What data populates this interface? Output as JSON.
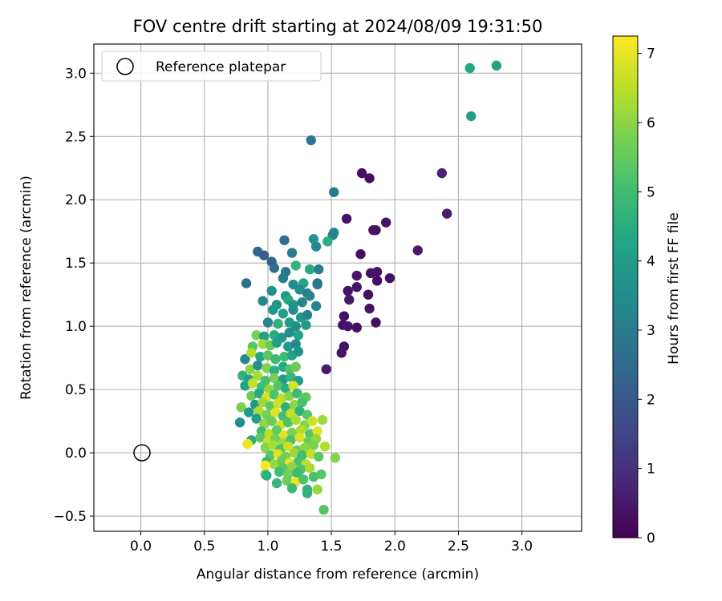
{
  "chart_data": {
    "type": "scatter",
    "title": "FOV centre drift starting at 2024/08/09 19:31:50",
    "xlabel": "Angular distance from reference (arcmin)",
    "ylabel": "Rotation from reference (arcmin)",
    "xlim": [
      -0.37,
      3.47
    ],
    "ylim": [
      -0.62,
      3.23
    ],
    "xticks": [
      0.0,
      0.5,
      1.0,
      1.5,
      2.0,
      2.5,
      3.0
    ],
    "yticks": [
      -0.5,
      0.0,
      0.5,
      1.0,
      1.5,
      2.0,
      2.5,
      3.0
    ],
    "xtick_labels": [
      "0.0",
      "0.5",
      "1.0",
      "1.5",
      "2.0",
      "2.5",
      "3.0"
    ],
    "ytick_labels": [
      "−0.5",
      "0.0",
      "0.5",
      "1.0",
      "1.5",
      "2.0",
      "2.5",
      "3.0"
    ],
    "grid": true,
    "legend": {
      "placement": "top-left",
      "entries": [
        {
          "label": "Reference platepar",
          "marker": "open-circle"
        }
      ]
    },
    "reference_point": {
      "x": 0.0,
      "y": 0.0,
      "label": "Reference platepar"
    },
    "colorbar": {
      "label": "Hours from first FF file",
      "colormap": "viridis",
      "range": [
        0,
        7.25
      ],
      "ticks": [
        0,
        1,
        2,
        3,
        4,
        5,
        6,
        7
      ],
      "tick_labels": [
        "0",
        "1",
        "2",
        "3",
        "4",
        "5",
        "6",
        "7"
      ]
    },
    "points": [
      {
        "x": 1.74,
        "y": 2.21,
        "c": 0.3
      },
      {
        "x": 1.8,
        "y": 2.17,
        "c": 0.3
      },
      {
        "x": 1.62,
        "y": 1.85,
        "c": 0.4
      },
      {
        "x": 1.83,
        "y": 1.76,
        "c": 0.4
      },
      {
        "x": 1.85,
        "y": 1.76,
        "c": 0.3
      },
      {
        "x": 1.93,
        "y": 1.82,
        "c": 0.4
      },
      {
        "x": 1.73,
        "y": 1.57,
        "c": 0.3
      },
      {
        "x": 2.18,
        "y": 1.6,
        "c": 0.5
      },
      {
        "x": 1.81,
        "y": 1.42,
        "c": 0.3
      },
      {
        "x": 1.86,
        "y": 1.43,
        "c": 0.4
      },
      {
        "x": 1.7,
        "y": 1.4,
        "c": 0.4
      },
      {
        "x": 1.86,
        "y": 1.36,
        "c": 0.3
      },
      {
        "x": 1.96,
        "y": 1.38,
        "c": 0.3
      },
      {
        "x": 1.7,
        "y": 1.31,
        "c": 0.4
      },
      {
        "x": 1.63,
        "y": 1.28,
        "c": 0.4
      },
      {
        "x": 1.79,
        "y": 1.25,
        "c": 0.3
      },
      {
        "x": 1.64,
        "y": 1.21,
        "c": 0.5
      },
      {
        "x": 1.8,
        "y": 1.14,
        "c": 0.4
      },
      {
        "x": 1.6,
        "y": 1.08,
        "c": 0.3
      },
      {
        "x": 1.59,
        "y": 1.01,
        "c": 0.3
      },
      {
        "x": 1.63,
        "y": 1.0,
        "c": 0.4
      },
      {
        "x": 1.7,
        "y": 0.99,
        "c": 0.3
      },
      {
        "x": 1.85,
        "y": 1.03,
        "c": 0.3
      },
      {
        "x": 1.6,
        "y": 0.84,
        "c": 0.4
      },
      {
        "x": 1.58,
        "y": 0.79,
        "c": 0.4
      },
      {
        "x": 1.46,
        "y": 0.66,
        "c": 0.6
      },
      {
        "x": 2.37,
        "y": 2.21,
        "c": 0.7
      },
      {
        "x": 2.41,
        "y": 1.89,
        "c": 0.6
      },
      {
        "x": 2.59,
        "y": 3.04,
        "c": 4.3
      },
      {
        "x": 2.8,
        "y": 3.06,
        "c": 4.2
      },
      {
        "x": 2.6,
        "y": 2.66,
        "c": 4.1
      },
      {
        "x": 1.34,
        "y": 2.47,
        "c": 2.8
      },
      {
        "x": 1.52,
        "y": 2.06,
        "c": 2.9
      },
      {
        "x": 1.52,
        "y": 1.74,
        "c": 3.6
      },
      {
        "x": 1.51,
        "y": 1.72,
        "c": 3.2
      },
      {
        "x": 1.47,
        "y": 1.67,
        "c": 4.6
      },
      {
        "x": 1.36,
        "y": 1.69,
        "c": 3.7
      },
      {
        "x": 1.38,
        "y": 1.63,
        "c": 3.3
      },
      {
        "x": 0.92,
        "y": 1.59,
        "c": 2.4
      },
      {
        "x": 0.97,
        "y": 1.56,
        "c": 2.2
      },
      {
        "x": 1.13,
        "y": 1.68,
        "c": 2.6
      },
      {
        "x": 1.19,
        "y": 1.58,
        "c": 3.1
      },
      {
        "x": 1.03,
        "y": 1.51,
        "c": 2.4
      },
      {
        "x": 1.05,
        "y": 1.46,
        "c": 2.6
      },
      {
        "x": 1.14,
        "y": 1.43,
        "c": 2.9
      },
      {
        "x": 1.22,
        "y": 1.48,
        "c": 4.7
      },
      {
        "x": 1.33,
        "y": 1.45,
        "c": 4.4
      },
      {
        "x": 1.4,
        "y": 1.45,
        "c": 3.1
      },
      {
        "x": 0.83,
        "y": 1.34,
        "c": 2.6
      },
      {
        "x": 1.12,
        "y": 1.38,
        "c": 3.0
      },
      {
        "x": 1.2,
        "y": 1.33,
        "c": 3.5
      },
      {
        "x": 1.28,
        "y": 1.34,
        "c": 4.3
      },
      {
        "x": 1.39,
        "y": 1.34,
        "c": 2.9
      },
      {
        "x": 1.39,
        "y": 1.33,
        "c": 2.9
      },
      {
        "x": 1.03,
        "y": 1.28,
        "c": 3.6
      },
      {
        "x": 1.14,
        "y": 1.24,
        "c": 3.9
      },
      {
        "x": 1.25,
        "y": 1.29,
        "c": 3.5
      },
      {
        "x": 1.31,
        "y": 1.26,
        "c": 3.1
      },
      {
        "x": 1.33,
        "y": 1.24,
        "c": 3.3
      },
      {
        "x": 0.96,
        "y": 1.2,
        "c": 3.4
      },
      {
        "x": 1.07,
        "y": 1.17,
        "c": 3.7
      },
      {
        "x": 1.16,
        "y": 1.21,
        "c": 4.4
      },
      {
        "x": 1.2,
        "y": 1.17,
        "c": 3.8
      },
      {
        "x": 1.27,
        "y": 1.19,
        "c": 3.3
      },
      {
        "x": 1.38,
        "y": 1.16,
        "c": 3.2
      },
      {
        "x": 1.04,
        "y": 1.13,
        "c": 3.9
      },
      {
        "x": 1.12,
        "y": 1.1,
        "c": 4.1
      },
      {
        "x": 1.2,
        "y": 1.13,
        "c": 3.6
      },
      {
        "x": 1.26,
        "y": 1.07,
        "c": 3.8
      },
      {
        "x": 1.31,
        "y": 1.09,
        "c": 3.2
      },
      {
        "x": 1.0,
        "y": 1.03,
        "c": 3.3
      },
      {
        "x": 1.08,
        "y": 1.02,
        "c": 4.6
      },
      {
        "x": 1.17,
        "y": 1.03,
        "c": 4.0
      },
      {
        "x": 1.22,
        "y": 1.0,
        "c": 3.5
      },
      {
        "x": 1.3,
        "y": 1.01,
        "c": 3.9
      },
      {
        "x": 0.91,
        "y": 0.93,
        "c": 5.7
      },
      {
        "x": 0.97,
        "y": 0.92,
        "c": 4.1
      },
      {
        "x": 1.05,
        "y": 0.93,
        "c": 4.5
      },
      {
        "x": 1.11,
        "y": 0.91,
        "c": 3.8
      },
      {
        "x": 1.17,
        "y": 0.95,
        "c": 3.6
      },
      {
        "x": 1.24,
        "y": 0.93,
        "c": 4.2
      },
      {
        "x": 0.88,
        "y": 0.84,
        "c": 5.3
      },
      {
        "x": 0.96,
        "y": 0.86,
        "c": 6.2
      },
      {
        "x": 1.02,
        "y": 0.85,
        "c": 5.5
      },
      {
        "x": 1.07,
        "y": 0.87,
        "c": 4.0
      },
      {
        "x": 1.16,
        "y": 0.84,
        "c": 3.9
      },
      {
        "x": 1.22,
        "y": 0.86,
        "c": 3.4
      },
      {
        "x": 0.82,
        "y": 0.74,
        "c": 3.4
      },
      {
        "x": 0.87,
        "y": 0.79,
        "c": 6.4
      },
      {
        "x": 0.94,
        "y": 0.76,
        "c": 4.3
      },
      {
        "x": 1.0,
        "y": 0.77,
        "c": 5.4
      },
      {
        "x": 1.06,
        "y": 0.74,
        "c": 4.9
      },
      {
        "x": 1.13,
        "y": 0.76,
        "c": 5.0
      },
      {
        "x": 1.19,
        "y": 0.77,
        "c": 4.2
      },
      {
        "x": 1.24,
        "y": 0.8,
        "c": 3.7
      },
      {
        "x": 0.86,
        "y": 0.66,
        "c": 6.0
      },
      {
        "x": 0.92,
        "y": 0.69,
        "c": 3.6
      },
      {
        "x": 0.99,
        "y": 0.67,
        "c": 5.9
      },
      {
        "x": 1.05,
        "y": 0.65,
        "c": 4.6
      },
      {
        "x": 1.12,
        "y": 0.68,
        "c": 4.4
      },
      {
        "x": 1.17,
        "y": 0.66,
        "c": 5.2
      },
      {
        "x": 1.22,
        "y": 0.68,
        "c": 5.6
      },
      {
        "x": 0.8,
        "y": 0.61,
        "c": 4.7
      },
      {
        "x": 0.85,
        "y": 0.58,
        "c": 4.1
      },
      {
        "x": 0.92,
        "y": 0.61,
        "c": 6.3
      },
      {
        "x": 0.98,
        "y": 0.57,
        "c": 5.1
      },
      {
        "x": 1.05,
        "y": 0.59,
        "c": 5.8
      },
      {
        "x": 1.12,
        "y": 0.58,
        "c": 3.9
      },
      {
        "x": 1.18,
        "y": 0.6,
        "c": 4.8
      },
      {
        "x": 1.24,
        "y": 0.57,
        "c": 4.0
      },
      {
        "x": 0.82,
        "y": 0.53,
        "c": 4.2
      },
      {
        "x": 0.88,
        "y": 0.55,
        "c": 6.6
      },
      {
        "x": 0.95,
        "y": 0.52,
        "c": 5.0
      },
      {
        "x": 1.01,
        "y": 0.5,
        "c": 6.1
      },
      {
        "x": 1.08,
        "y": 0.53,
        "c": 5.3
      },
      {
        "x": 1.14,
        "y": 0.51,
        "c": 4.5
      },
      {
        "x": 1.2,
        "y": 0.53,
        "c": 6.8
      },
      {
        "x": 0.87,
        "y": 0.45,
        "c": 5.6
      },
      {
        "x": 0.93,
        "y": 0.47,
        "c": 4.4
      },
      {
        "x": 0.99,
        "y": 0.44,
        "c": 6.9
      },
      {
        "x": 1.05,
        "y": 0.46,
        "c": 5.2
      },
      {
        "x": 1.11,
        "y": 0.43,
        "c": 6.5
      },
      {
        "x": 1.17,
        "y": 0.45,
        "c": 5.9
      },
      {
        "x": 1.23,
        "y": 0.47,
        "c": 4.9
      },
      {
        "x": 1.3,
        "y": 0.44,
        "c": 5.5
      },
      {
        "x": 0.9,
        "y": 0.38,
        "c": 3.8
      },
      {
        "x": 0.96,
        "y": 0.4,
        "c": 6.2
      },
      {
        "x": 1.02,
        "y": 0.37,
        "c": 5.4
      },
      {
        "x": 1.08,
        "y": 0.39,
        "c": 6.7
      },
      {
        "x": 1.14,
        "y": 0.36,
        "c": 4.6
      },
      {
        "x": 1.21,
        "y": 0.38,
        "c": 6.0
      },
      {
        "x": 1.27,
        "y": 0.4,
        "c": 5.1
      },
      {
        "x": 0.79,
        "y": 0.36,
        "c": 5.8
      },
      {
        "x": 0.85,
        "y": 0.32,
        "c": 3.9
      },
      {
        "x": 0.93,
        "y": 0.33,
        "c": 6.4
      },
      {
        "x": 0.99,
        "y": 0.3,
        "c": 5.7
      },
      {
        "x": 1.06,
        "y": 0.32,
        "c": 6.9
      },
      {
        "x": 1.12,
        "y": 0.29,
        "c": 5.0
      },
      {
        "x": 1.18,
        "y": 0.31,
        "c": 6.6
      },
      {
        "x": 1.25,
        "y": 0.33,
        "c": 4.7
      },
      {
        "x": 1.31,
        "y": 0.3,
        "c": 5.3
      },
      {
        "x": 0.78,
        "y": 0.24,
        "c": 3.6
      },
      {
        "x": 0.91,
        "y": 0.27,
        "c": 4.0
      },
      {
        "x": 0.97,
        "y": 0.23,
        "c": 6.1
      },
      {
        "x": 1.03,
        "y": 0.25,
        "c": 5.6
      },
      {
        "x": 1.1,
        "y": 0.22,
        "c": 6.8
      },
      {
        "x": 1.16,
        "y": 0.24,
        "c": 5.2
      },
      {
        "x": 1.22,
        "y": 0.26,
        "c": 6.3
      },
      {
        "x": 1.29,
        "y": 0.22,
        "c": 5.9
      },
      {
        "x": 1.35,
        "y": 0.25,
        "c": 6.7
      },
      {
        "x": 1.43,
        "y": 0.26,
        "c": 6.2
      },
      {
        "x": 0.95,
        "y": 0.17,
        "c": 5.0
      },
      {
        "x": 1.01,
        "y": 0.15,
        "c": 6.5
      },
      {
        "x": 1.07,
        "y": 0.18,
        "c": 5.5
      },
      {
        "x": 1.13,
        "y": 0.14,
        "c": 7.0
      },
      {
        "x": 1.19,
        "y": 0.16,
        "c": 5.8
      },
      {
        "x": 1.26,
        "y": 0.18,
        "c": 6.4
      },
      {
        "x": 1.33,
        "y": 0.15,
        "c": 5.3
      },
      {
        "x": 1.39,
        "y": 0.17,
        "c": 6.9
      },
      {
        "x": 0.87,
        "y": 0.1,
        "c": 4.5
      },
      {
        "x": 0.94,
        "y": 0.12,
        "c": 5.4
      },
      {
        "x": 1.0,
        "y": 0.09,
        "c": 6.6
      },
      {
        "x": 1.06,
        "y": 0.11,
        "c": 5.7
      },
      {
        "x": 1.12,
        "y": 0.08,
        "c": 6.2
      },
      {
        "x": 1.18,
        "y": 0.1,
        "c": 5.1
      },
      {
        "x": 1.25,
        "y": 0.12,
        "c": 6.8
      },
      {
        "x": 1.32,
        "y": 0.09,
        "c": 5.6
      },
      {
        "x": 1.38,
        "y": 0.11,
        "c": 6.1
      },
      {
        "x": 0.84,
        "y": 0.07,
        "c": 7.1
      },
      {
        "x": 0.98,
        "y": 0.04,
        "c": 5.9
      },
      {
        "x": 1.04,
        "y": 0.06,
        "c": 6.3
      },
      {
        "x": 1.1,
        "y": 0.03,
        "c": 5.2
      },
      {
        "x": 1.16,
        "y": 0.05,
        "c": 6.7
      },
      {
        "x": 1.23,
        "y": 0.02,
        "c": 5.5
      },
      {
        "x": 1.29,
        "y": 0.04,
        "c": 6.0
      },
      {
        "x": 1.36,
        "y": 0.06,
        "c": 5.8
      },
      {
        "x": 1.45,
        "y": 0.05,
        "c": 6.4
      },
      {
        "x": 1.02,
        "y": -0.02,
        "c": 5.3
      },
      {
        "x": 1.08,
        "y": -0.01,
        "c": 6.9
      },
      {
        "x": 1.14,
        "y": -0.03,
        "c": 5.7
      },
      {
        "x": 1.21,
        "y": 0.0,
        "c": 6.2
      },
      {
        "x": 1.27,
        "y": -0.02,
        "c": 5.0
      },
      {
        "x": 1.34,
        "y": -0.01,
        "c": 6.6
      },
      {
        "x": 1.4,
        "y": -0.03,
        "c": 5.4
      },
      {
        "x": 1.53,
        "y": -0.04,
        "c": 5.9
      },
      {
        "x": 0.99,
        "y": -0.07,
        "c": 4.8
      },
      {
        "x": 1.05,
        "y": -0.09,
        "c": 6.1
      },
      {
        "x": 1.11,
        "y": -0.06,
        "c": 5.6
      },
      {
        "x": 1.17,
        "y": -0.08,
        "c": 7.0
      },
      {
        "x": 1.24,
        "y": -0.07,
        "c": 5.1
      },
      {
        "x": 1.3,
        "y": -0.09,
        "c": 6.5
      },
      {
        "x": 0.98,
        "y": -0.1,
        "c": 7.2
      },
      {
        "x": 1.12,
        "y": -0.12,
        "c": 5.4
      },
      {
        "x": 1.19,
        "y": -0.11,
        "c": 6.0
      },
      {
        "x": 1.26,
        "y": -0.13,
        "c": 5.2
      },
      {
        "x": 1.33,
        "y": -0.12,
        "c": 6.3
      },
      {
        "x": 0.98,
        "y": -0.17,
        "c": 5.5
      },
      {
        "x": 0.99,
        "y": -0.18,
        "c": 4.6
      },
      {
        "x": 1.09,
        "y": -0.15,
        "c": 5.0
      },
      {
        "x": 1.16,
        "y": -0.17,
        "c": 5.7
      },
      {
        "x": 1.23,
        "y": -0.16,
        "c": 4.9
      },
      {
        "x": 1.36,
        "y": -0.19,
        "c": 5.1
      },
      {
        "x": 1.42,
        "y": -0.17,
        "c": 5.3
      },
      {
        "x": 1.07,
        "y": -0.24,
        "c": 4.8
      },
      {
        "x": 1.15,
        "y": -0.22,
        "c": 5.6
      },
      {
        "x": 1.22,
        "y": -0.23,
        "c": 7.0
      },
      {
        "x": 1.28,
        "y": -0.21,
        "c": 5.2
      },
      {
        "x": 1.19,
        "y": -0.28,
        "c": 4.9
      },
      {
        "x": 1.31,
        "y": -0.29,
        "c": 4.6
      },
      {
        "x": 1.39,
        "y": -0.29,
        "c": 6.1
      },
      {
        "x": 1.31,
        "y": -0.32,
        "c": 4.7
      },
      {
        "x": 1.44,
        "y": -0.45,
        "c": 5.3
      }
    ]
  }
}
